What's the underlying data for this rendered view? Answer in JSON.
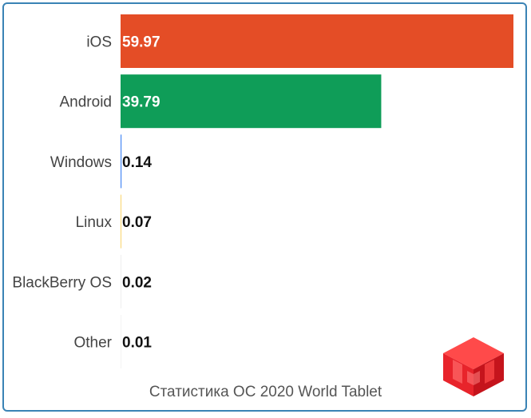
{
  "chart_data": {
    "type": "bar",
    "orientation": "horizontal",
    "title": "Статистика ОС 2020 World Tablet",
    "categories": [
      "iOS",
      "Android",
      "Windows",
      "Linux",
      "BlackBerry OS",
      "Other"
    ],
    "values": [
      59.97,
      39.79,
      0.14,
      0.07,
      0.02,
      0.01
    ],
    "value_labels": [
      "59.97",
      "39.79",
      "0.14",
      "0.07",
      "0.02",
      "0.01"
    ],
    "colors": [
      "#e44d26",
      "#0f9d58",
      "#4285f4",
      "#f4b400",
      "#9e9e9e",
      "#757575"
    ],
    "xlim": [
      0,
      59.97
    ],
    "grid": false,
    "legend": "none"
  },
  "logo": {
    "icon": "cube-logo-icon",
    "color": "#e8242b"
  }
}
